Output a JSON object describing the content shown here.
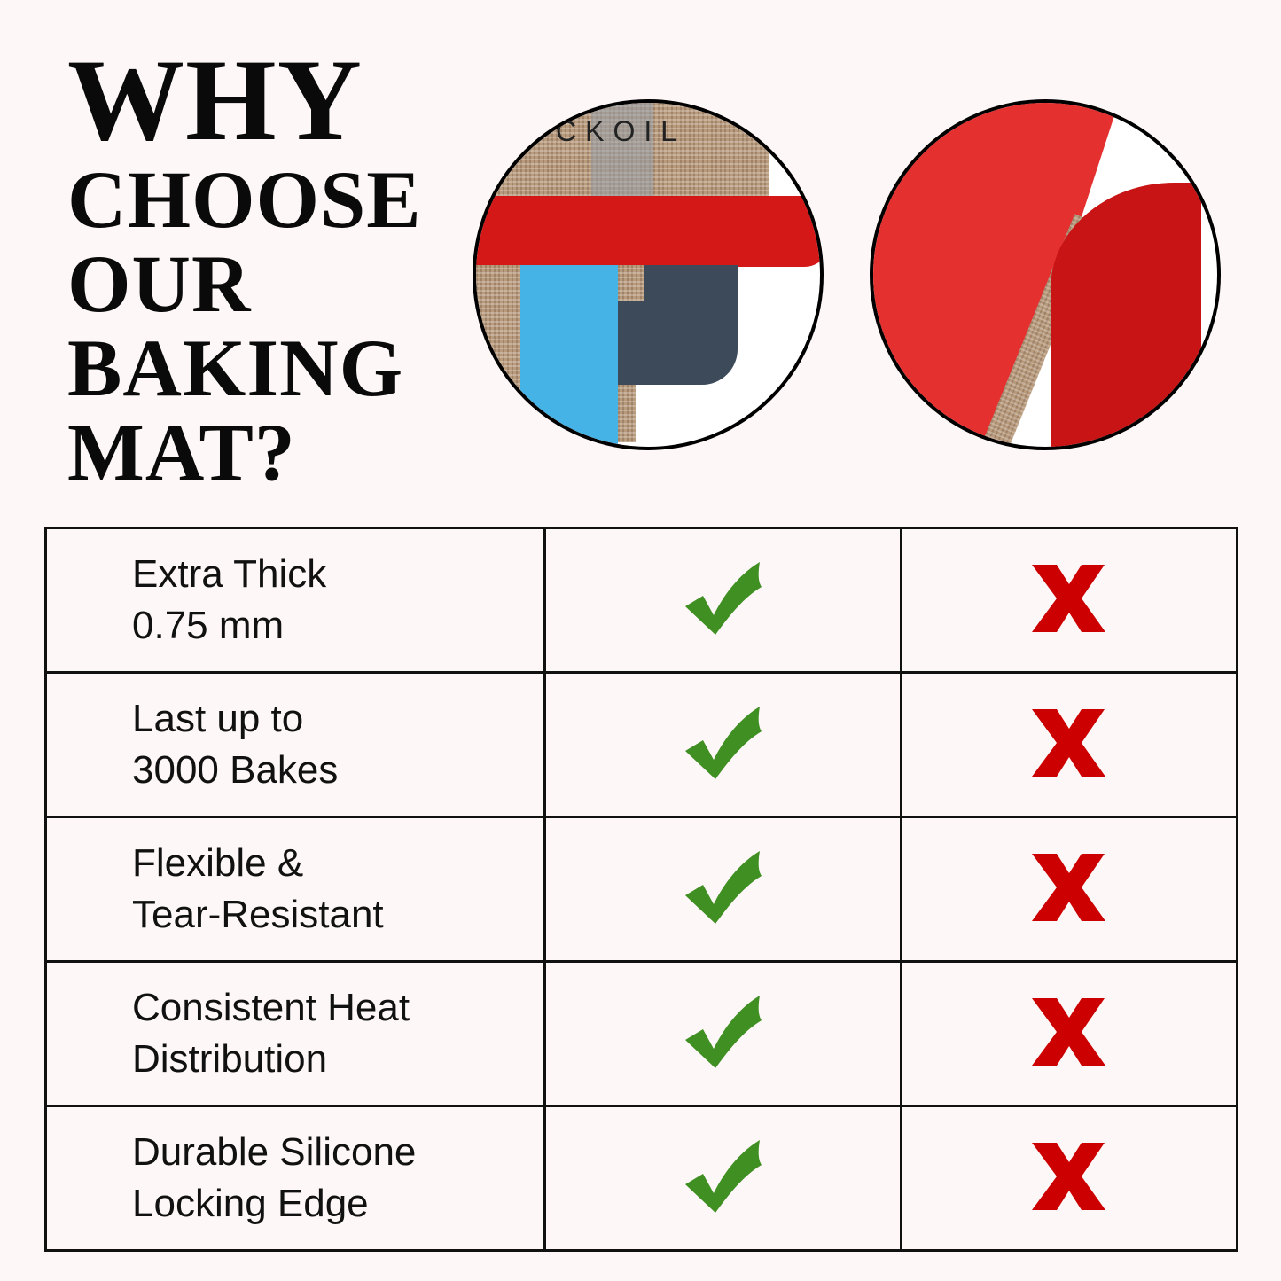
{
  "title": {
    "line1": "WHY",
    "line2": "CHOOSE",
    "line3": "OUR",
    "line4": "BAKING",
    "line5": "MAT?"
  },
  "images": {
    "left_brand_text": "CKOIL"
  },
  "colors": {
    "check": "#3f8f22",
    "cross": "#cc0000",
    "background": "#fdf7f7"
  },
  "table": {
    "rows": [
      {
        "line1": "Extra Thick",
        "line2": "0.75 mm",
        "ours": "check-icon",
        "others": "x-icon"
      },
      {
        "line1": "Last up to",
        "line2": "3000 Bakes",
        "ours": "check-icon",
        "others": "x-icon"
      },
      {
        "line1": "Flexible &",
        "line2": "Tear-Resistant",
        "ours": "check-icon",
        "others": "x-icon"
      },
      {
        "line1": "Consistent Heat",
        "line2": "Distribution",
        "ours": "check-icon",
        "others": "x-icon"
      },
      {
        "line1": "Durable Silicone",
        "line2": "Locking Edge",
        "ours": "check-icon",
        "others": "x-icon"
      }
    ]
  }
}
